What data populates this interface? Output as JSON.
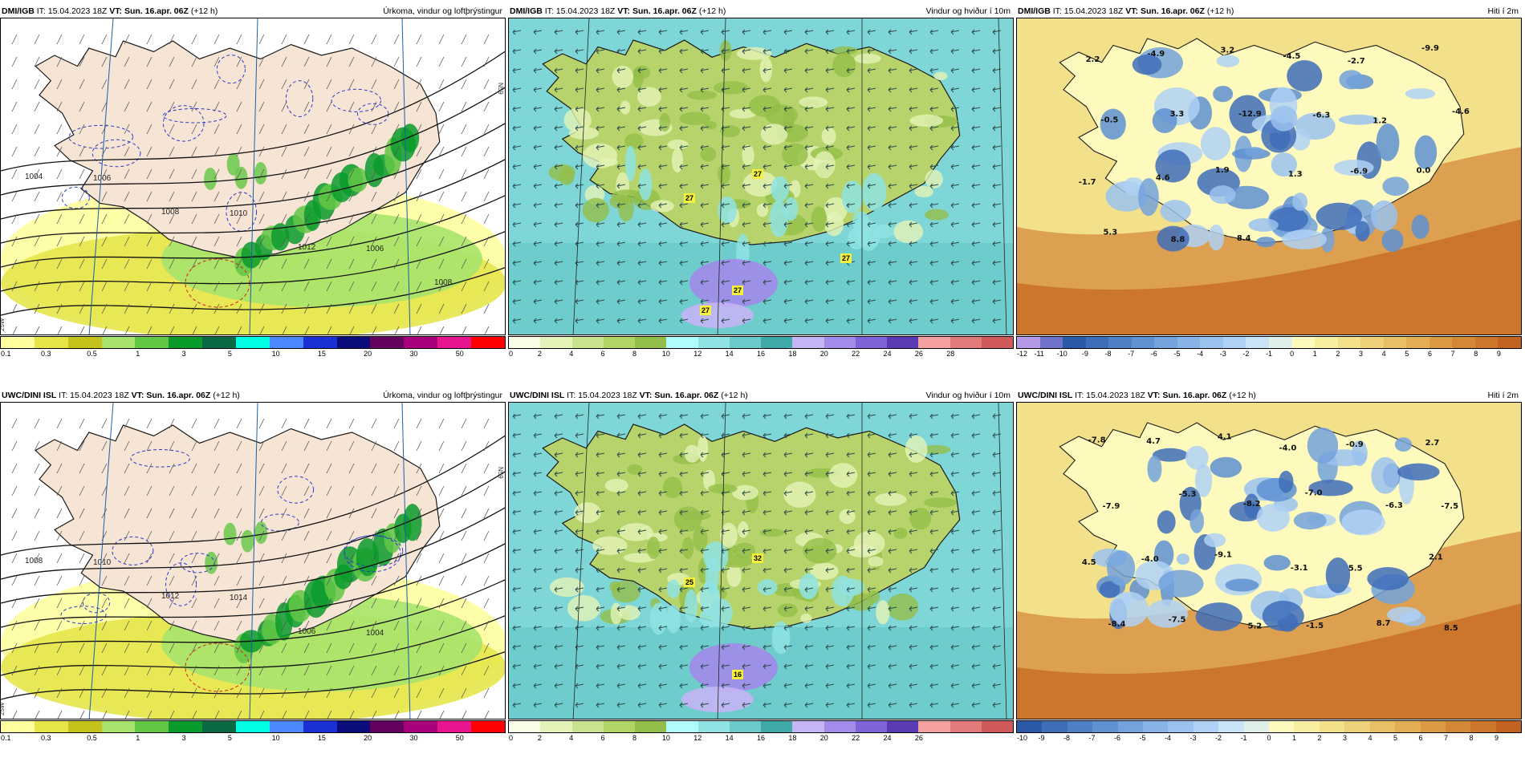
{
  "panels": [
    {
      "id": "dmi-precip",
      "model": "DMI/IGB",
      "it_label": "IT: 15.04.2023 18Z",
      "vt_prefix": "VT:",
      "vt_value": "Sun. 16.apr. 06Z",
      "lead": "(+12 h)",
      "title": "Úrkoma, vindur og loftþrýstingur",
      "type": "precip",
      "legend_colors": [
        "#fefe9f",
        "#e5e54a",
        "#c5c31b",
        "#a7e36c",
        "#61c744",
        "#0b9b2c",
        "#0a6a43",
        "#00ffe2",
        "#4a88ff",
        "#1931d4",
        "#0b0e7a",
        "#64005d",
        "#a8007c",
        "#e8168e",
        "#ff0000"
      ],
      "legend_ticks": [
        "0.1",
        "0.3",
        "0.5",
        "1",
        "3",
        "5",
        "10",
        "15",
        "20",
        "30",
        "50"
      ],
      "isobar_labels": [
        "1004",
        "1006",
        "1008",
        "1010",
        "1012",
        "1006",
        "1008"
      ]
    },
    {
      "id": "dmi-wind",
      "model": "DMI/IGB",
      "it_label": "IT: 15.04.2023 18Z",
      "vt_prefix": "VT:",
      "vt_value": "Sun. 16.apr. 06Z",
      "lead": "(+12 h)",
      "title": "Vindur og hviður í 10m",
      "type": "wind",
      "legend_colors": [
        "#fbfde6",
        "#e3f3b7",
        "#c9e38d",
        "#b0d466",
        "#93be49",
        "#b0fbfb",
        "#8fe3e3",
        "#6cc9c9",
        "#3fa9a9",
        "#c5b5f5",
        "#a28bea",
        "#8063d8",
        "#5a3ab5",
        "#f5a0a0",
        "#e27a7a",
        "#d05a5a"
      ],
      "legend_ticks": [
        "0",
        "2",
        "4",
        "6",
        "8",
        "10",
        "12",
        "14",
        "16",
        "18",
        "20",
        "22",
        "24",
        "26",
        "28"
      ],
      "gust_labels": [
        "27",
        "27",
        "27",
        "27",
        "27"
      ]
    },
    {
      "id": "dmi-temp",
      "model": "DMI/IGB",
      "it_label": "IT: 15.04.2023 18Z",
      "vt_prefix": "VT:",
      "vt_value": "Sun. 16.apr. 06Z",
      "lead": "(+12 h)",
      "title": "Hiti í 2m",
      "type": "temp",
      "legend_colors": [
        "#b49ae6",
        "#6f73c9",
        "#2a5aa8",
        "#3f6db8",
        "#4f80c6",
        "#5e90d2",
        "#73a2dc",
        "#87b3e6",
        "#9ac2ee",
        "#afd1f5",
        "#c9e3f7",
        "#dff0e8",
        "#fefabd",
        "#f8eea0",
        "#f3e08a",
        "#eed07a",
        "#e9bf66",
        "#e3ad53",
        "#dc9a43",
        "#d48837",
        "#cb762b",
        "#c26322"
      ],
      "legend_ticks": [
        "-12",
        "-11",
        "-10",
        "-9",
        "-8",
        "-7",
        "-6",
        "-5",
        "-4",
        "-3",
        "-2",
        "-1",
        "0",
        "1",
        "2",
        "3",
        "4",
        "5",
        "6",
        "7",
        "8",
        "9"
      ],
      "temp_labels": [
        "2.2",
        "-4.9",
        "3.2",
        "-4.5",
        "-2.7",
        "-9.9",
        "-0.5",
        "3.3",
        "-12.9",
        "-6.3",
        "1.2",
        "-4.6",
        "-1.7",
        "4.6",
        "1.9",
        "1.3",
        "-6.9",
        "0.0",
        "5.3",
        "8.8",
        "8.4"
      ]
    },
    {
      "id": "uwc-precip",
      "model": "UWC/DINI ISL",
      "it_label": "IT: 15.04.2023 18Z",
      "vt_prefix": "VT:",
      "vt_value": "Sun. 16.apr. 06Z",
      "lead": "(+12 h)",
      "title": "Úrkoma, vindur og loftþrýstingur",
      "type": "precip",
      "legend_colors": [
        "#fefe9f",
        "#e5e54a",
        "#c5c31b",
        "#a7e36c",
        "#61c744",
        "#0b9b2c",
        "#0a6a43",
        "#00ffe2",
        "#4a88ff",
        "#1931d4",
        "#0b0e7a",
        "#64005d",
        "#a8007c",
        "#e8168e",
        "#ff0000"
      ],
      "legend_ticks": [
        "0.1",
        "0.3",
        "0.5",
        "1",
        "3",
        "5",
        "10",
        "15",
        "20",
        "30",
        "50"
      ],
      "isobar_labels": [
        "1008",
        "1010",
        "1012",
        "1014",
        "1006",
        "1004"
      ]
    },
    {
      "id": "uwc-wind",
      "model": "UWC/DINI ISL",
      "it_label": "IT: 15.04.2023 18Z",
      "vt_prefix": "VT:",
      "vt_value": "Sun. 16.apr. 06Z",
      "lead": "(+12 h)",
      "title": "Vindur og hviður í 10m",
      "type": "wind",
      "legend_colors": [
        "#fbfde6",
        "#e3f3b7",
        "#c9e38d",
        "#b0d466",
        "#93be49",
        "#b0fbfb",
        "#8fe3e3",
        "#6cc9c9",
        "#3fa9a9",
        "#c5b5f5",
        "#a28bea",
        "#8063d8",
        "#5a3ab5",
        "#f5a0a0",
        "#e27a7a",
        "#d05a5a"
      ],
      "legend_ticks": [
        "0",
        "2",
        "4",
        "6",
        "8",
        "10",
        "12",
        "14",
        "16",
        "18",
        "20",
        "22",
        "24",
        "26"
      ],
      "gust_labels": [
        "25",
        "32",
        "16"
      ]
    },
    {
      "id": "uwc-temp",
      "model": "UWC/DINI ISL",
      "it_label": "IT: 15.04.2023 18Z",
      "vt_prefix": "VT:",
      "vt_value": "Sun. 16.apr. 06Z",
      "lead": "(+12 h)",
      "title": "Hiti í 2m",
      "type": "temp",
      "legend_colors": [
        "#2a5aa8",
        "#3f6db8",
        "#4f80c6",
        "#5e90d2",
        "#73a2dc",
        "#87b3e6",
        "#9ac2ee",
        "#afd1f5",
        "#c9e3f7",
        "#dff0e8",
        "#fefabd",
        "#f8eea0",
        "#f3e08a",
        "#eed07a",
        "#e9bf66",
        "#e3ad53",
        "#dc9a43",
        "#d48837",
        "#cb762b",
        "#c26322"
      ],
      "legend_ticks": [
        "-10",
        "-9",
        "-8",
        "-7",
        "-6",
        "-5",
        "-4",
        "-3",
        "-2",
        "-1",
        "0",
        "1",
        "2",
        "3",
        "4",
        "5",
        "6",
        "7",
        "8",
        "9"
      ],
      "temp_labels": [
        "-7.8",
        "4.7",
        "4.1",
        "-4.0",
        "-0.9",
        "2.7",
        "-7.9",
        "-5.3",
        "-8.2",
        "-7.0",
        "-6.3",
        "-7.5",
        "4.5",
        "-4.0",
        "-9.1",
        "-3.1",
        "5.5",
        "2.1",
        "-8.4",
        "-7.5",
        "5.2",
        "-1.5",
        "8.7",
        "8.5"
      ]
    }
  ],
  "axis_labels": {
    "lat_n": "N59",
    "lon_w": "25W"
  },
  "colors": {
    "land_tan": "#f6e4d4",
    "sea_white": "#ffffff",
    "coast": "#1a1a1a",
    "isobar": "#111111",
    "dashed_blue": "#2b3bc9",
    "dashed_red": "#d52020",
    "wind_sea": "#7fd6d6",
    "wind_land": "#b7d46c",
    "temp_warm": "#dca050",
    "temp_cold": "#5a8cd0"
  }
}
